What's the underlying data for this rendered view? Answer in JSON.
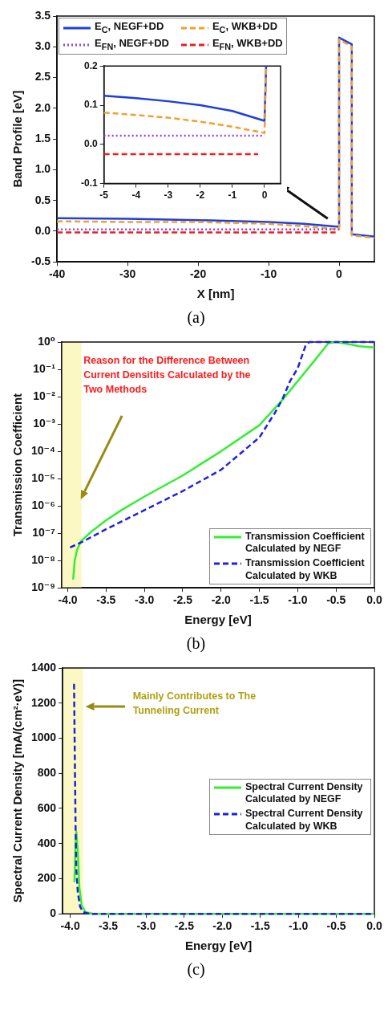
{
  "chart_data": [
    {
      "type": "line",
      "xlabel": "X [nm]",
      "ylabel": "Band Profile [eV]",
      "xlim": [
        -40,
        5
      ],
      "xticks": [
        -40,
        -30,
        -20,
        -10,
        0
      ],
      "ylim": [
        -0.5,
        3.5
      ],
      "yticks": [
        -0.5,
        {
          "value": 0,
          "label": "0.0"
        },
        0.5,
        {
          "value": 1,
          "label": "1.0"
        },
        1.5,
        {
          "value": 2,
          "label": "2.0"
        },
        2.5,
        {
          "value": 3,
          "label": "3.0"
        },
        3.5
      ],
      "legend": "top left",
      "annotations": [
        "(a)"
      ],
      "series": [
        {
          "name": "E$_{C}$, NEGF+DD",
          "color": "#1f3ee0",
          "line_style": "solid",
          "x": [
            -40,
            -30,
            -20,
            -10,
            -5,
            -2,
            0,
            0,
            1.8,
            1.8,
            5
          ],
          "values": [
            0.21,
            0.2,
            0.18,
            0.15,
            0.12,
            0.09,
            0.07,
            3.15,
            3.04,
            -0.05,
            -0.09
          ]
        },
        {
          "name": "E$_{C}$, WKB+DD",
          "color": "#f0a030",
          "line_style": "dashed",
          "x": [
            -40,
            -30,
            -20,
            -10,
            -5,
            -2,
            0,
            0,
            1.8,
            1.8,
            5
          ],
          "values": [
            0.16,
            0.15,
            0.15,
            0.12,
            0.08,
            0.05,
            0.03,
            3.12,
            3.0,
            -0.07,
            -0.11
          ]
        },
        {
          "name": "E$_{FN}$, NEGF+DD",
          "color": "#9b40e0",
          "line_style": "dotted",
          "x": [
            -40,
            0
          ],
          "values": [
            0.03,
            0.03
          ]
        },
        {
          "name": "E$_{FN}$, WKB+DD",
          "color": "#e82020",
          "line_style": "dashed",
          "x": [
            -40,
            -0.5
          ],
          "values": [
            -0.02,
            -0.02
          ]
        }
      ]
    },
    {
      "type": "line",
      "xlim": [
        -5,
        0.5
      ],
      "xticks": [
        -5,
        -4,
        -3,
        -2,
        -1,
        0
      ],
      "ylim": [
        -0.1,
        0.2
      ],
      "yticks": [
        -0.1,
        {
          "value": 0,
          "label": "0.0"
        },
        0.1,
        0.2
      ],
      "series": [
        {
          "color": "#1f3ee0",
          "line_style": "solid",
          "x": [
            -5,
            -4,
            -3,
            -2,
            -1,
            0,
            0.05
          ],
          "values": [
            0.124,
            0.118,
            0.11,
            0.1,
            0.085,
            0.06,
            0.2
          ]
        },
        {
          "color": "#f0a030",
          "line_style": "dashed",
          "x": [
            -5,
            -4,
            -3,
            -2,
            -1,
            0,
            0.05
          ],
          "values": [
            0.081,
            0.075,
            0.068,
            0.058,
            0.045,
            0.029,
            0.2
          ]
        },
        {
          "color": "#9b40e0",
          "line_style": "dotted",
          "x": [
            -5,
            0
          ],
          "values": [
            0.022,
            0.022
          ]
        },
        {
          "color": "#e82020",
          "line_style": "dashed",
          "x": [
            -5,
            -0.2
          ],
          "values": [
            -0.025,
            -0.025
          ]
        }
      ]
    },
    {
      "type": "line",
      "xlabel": "Energy [eV]",
      "ylabel": "Transmission Coefficient",
      "log": "y",
      "xlim": [
        -4.08,
        0
      ],
      "xticks": [
        {
          "value": -4,
          "label": "-4.0"
        },
        -3.5,
        {
          "value": -3,
          "label": "-3.0"
        },
        -2.5,
        {
          "value": -2,
          "label": "-2.0"
        },
        -1.5,
        {
          "value": -1,
          "label": "-1.0"
        },
        -0.5,
        {
          "value": 0,
          "label": "0.0"
        }
      ],
      "ylim": [
        1e-09,
        1
      ],
      "yticks": [
        {
          "value": 1,
          "label": "10⁰"
        },
        {
          "value": 0.1,
          "label": "10⁻¹"
        },
        {
          "value": 0.01,
          "label": "10⁻²"
        },
        {
          "value": 0.001,
          "label": "10⁻³"
        },
        {
          "value": 0.0001,
          "label": "10⁻⁴"
        },
        {
          "value": 1e-05,
          "label": "10⁻⁵"
        },
        {
          "value": 1e-06,
          "label": "10⁻⁶"
        },
        {
          "value": 1e-07,
          "label": "10⁻⁷"
        },
        {
          "value": 1e-08,
          "label": "10⁻⁸"
        },
        {
          "value": 1e-09,
          "label": "10⁻⁹"
        }
      ],
      "legend": "bottom right",
      "bands": [
        {
          "axis": "x",
          "from": -4.08,
          "to": -3.82,
          "color": "#fbf8c4"
        }
      ],
      "annotations": [
        "Reason for the Difference Between Current Densitits Calculated by the Two Methods",
        "(b)"
      ],
      "series": [
        {
          "name": "Transmission Coefficient Calculated by NEGF",
          "color": "#33ee33",
          "line_style": "solid",
          "x": [
            -3.93,
            -3.92,
            -3.91,
            -3.88,
            -3.83,
            -3.7,
            -3.5,
            -3.3,
            -3.0,
            -2.5,
            -2.0,
            -1.5,
            -1.2,
            -1.0,
            -0.8,
            -0.6,
            -0.5,
            -0.3,
            -0.2,
            0
          ],
          "values": [
            2e-09,
            4e-09,
            1e-08,
            2.4e-08,
            5e-08,
            1.1e-07,
            3e-07,
            7e-07,
            2.2e-06,
            1.3e-05,
            0.0001,
            0.0009,
            0.0076,
            0.037,
            0.18,
            0.9,
            1,
            0.8,
            0.7,
            0.63
          ]
        },
        {
          "name": "Transmission Coefficient Calculated by WKB",
          "color": "#2020e0",
          "line_style": "dashed",
          "x": [
            -3.97,
            -3.8,
            -3.5,
            -3.0,
            -2.5,
            -2.0,
            -1.5,
            -1.3,
            -1.2,
            -1.1,
            -1.0,
            -0.9,
            -0.85,
            0
          ],
          "values": [
            3e-08,
            5e-08,
            1.4e-07,
            7e-07,
            3.5e-06,
            2.1e-05,
            0.00032,
            0.0025,
            0.008,
            0.037,
            0.11,
            0.71,
            1,
            1
          ]
        }
      ]
    },
    {
      "type": "line",
      "xlabel": "Energy [eV]",
      "ylabel": "Spectral Current Density [mA/(cm²·eV)]",
      "xlim": [
        -4.1,
        0
      ],
      "xticks": [
        {
          "value": -4,
          "label": "-4.0"
        },
        -3.5,
        {
          "value": -3,
          "label": "-3.0"
        },
        -2.5,
        {
          "value": -2,
          "label": "-2.0"
        },
        -1.5,
        {
          "value": -1,
          "label": "-1.0"
        },
        -0.5,
        {
          "value": 0,
          "label": "0.0"
        }
      ],
      "ylim": [
        0,
        1400
      ],
      "yticks": [
        0,
        200,
        400,
        600,
        800,
        1000,
        1200,
        1400
      ],
      "legend": "right",
      "bands": [
        {
          "axis": "x",
          "from": -4.1,
          "to": -3.83,
          "color": "#fbf8c4"
        }
      ],
      "annotations": [
        "Mainly Contributes to The Tunneling Current",
        "(c)"
      ],
      "series": [
        {
          "name": "Spectral Current Density Calculated by NEGF",
          "color": "#33ee33",
          "line_style": "solid",
          "x": [
            -3.945,
            -3.93,
            -3.92,
            -3.9,
            -3.88,
            -3.85,
            -3.8,
            -3.7,
            0
          ],
          "values": [
            180,
            400,
            467,
            350,
            150,
            50,
            10,
            0,
            0
          ]
        },
        {
          "name": "Spectral Current Density Calculated by WKB",
          "color": "#2020e0",
          "line_style": "dashed",
          "x": [
            -3.95,
            -3.94,
            -3.93,
            -3.92,
            -3.9,
            -3.87,
            -3.83,
            -3.75,
            0
          ],
          "values": [
            1310,
            900,
            500,
            250,
            120,
            40,
            10,
            0,
            0
          ]
        }
      ]
    }
  ]
}
